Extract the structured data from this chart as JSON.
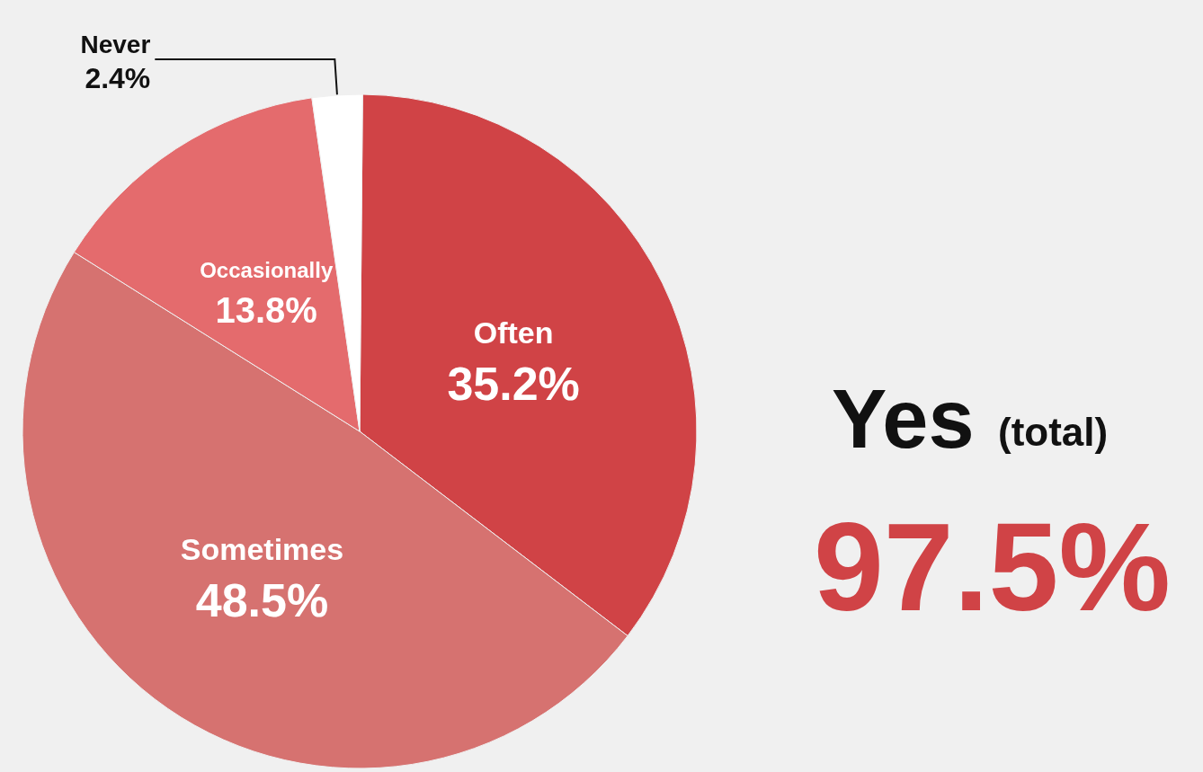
{
  "chart_data": {
    "type": "pie",
    "categories": [
      "Often",
      "Sometimes",
      "Occasionally",
      "Never"
    ],
    "values": [
      35.2,
      48.5,
      13.8,
      2.4
    ],
    "value_labels": [
      "35.2%",
      "48.5%",
      "13.8%",
      "2.4%"
    ],
    "colors": [
      "#d04346",
      "#d67270",
      "#e46b6d",
      "#ffffff"
    ],
    "annotations": [
      "Yes",
      "(total)",
      "97.5%"
    ],
    "legend": false
  }
}
